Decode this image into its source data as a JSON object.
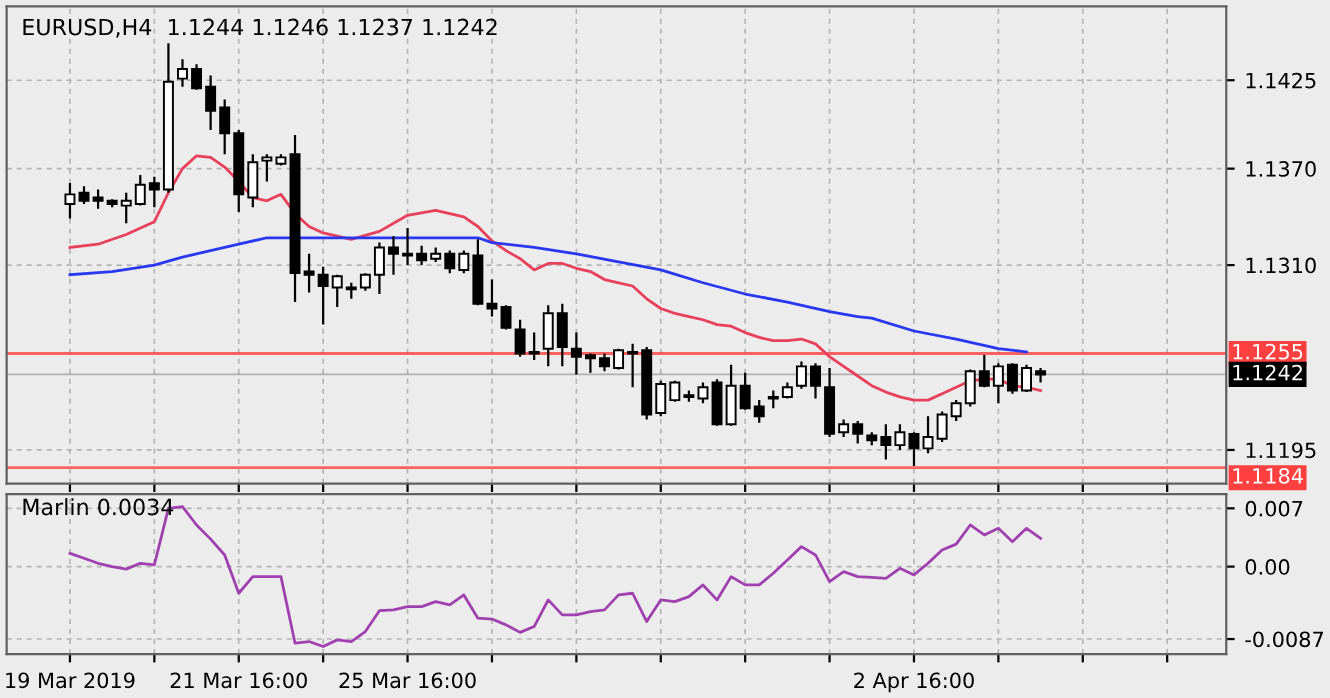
{
  "chart_data": [
    {
      "type": "candlestick",
      "title": "EURUSD,H4  1.1244 1.1246 1.1237 1.1242",
      "categories": [
        null,
        null,
        null,
        null,
        null,
        null,
        null,
        null,
        null,
        null,
        null,
        null,
        null,
        null,
        null,
        null,
        null,
        null,
        null,
        null,
        null,
        null,
        null,
        null,
        null,
        null,
        null,
        null,
        null,
        null,
        null,
        null,
        null,
        null,
        null,
        null,
        null,
        null,
        null,
        null,
        null,
        null,
        null,
        null,
        null,
        null,
        null,
        null,
        null,
        null,
        null,
        null,
        null,
        null,
        null,
        null,
        null,
        null,
        null,
        null,
        null,
        null,
        null,
        null,
        null,
        null,
        null,
        null,
        null,
        null
      ],
      "ohlc": [
        [
          1.1348,
          1.1361,
          1.1339,
          1.1354
        ],
        [
          1.1355,
          1.1359,
          1.1348,
          1.135
        ],
        [
          1.1352,
          1.1357,
          1.1345,
          1.135
        ],
        [
          1.135,
          1.1351,
          1.1346,
          1.1348
        ],
        [
          1.1347,
          1.1355,
          1.1336,
          1.135
        ],
        [
          1.1348,
          1.1366,
          1.1347,
          1.136
        ],
        [
          1.1361,
          1.1365,
          1.1346,
          1.1357
        ],
        [
          1.1357,
          1.1448,
          1.1355,
          1.1424
        ],
        [
          1.1426,
          1.1438,
          1.1421,
          1.1432
        ],
        [
          1.1432,
          1.1435,
          1.1419,
          1.142
        ],
        [
          1.1421,
          1.1428,
          1.1394,
          1.1406
        ],
        [
          1.1408,
          1.1413,
          1.1379,
          1.1392
        ],
        [
          1.1392,
          1.1394,
          1.1343,
          1.1354
        ],
        [
          1.1352,
          1.1379,
          1.1346,
          1.1374
        ],
        [
          1.1375,
          1.1379,
          1.1362,
          1.1377
        ],
        [
          1.1373,
          1.1379,
          1.1372,
          1.1377
        ],
        [
          1.1379,
          1.1391,
          1.1287,
          1.1305
        ],
        [
          1.1306,
          1.1317,
          1.1293,
          1.1304
        ],
        [
          1.1304,
          1.1309,
          1.1273,
          1.1297
        ],
        [
          1.1296,
          1.1304,
          1.1284,
          1.1303
        ],
        [
          1.1296,
          1.1299,
          1.1289,
          1.1295
        ],
        [
          1.1296,
          1.1305,
          1.1294,
          1.1304
        ],
        [
          1.1304,
          1.1324,
          1.1292,
          1.1321
        ],
        [
          1.1321,
          1.1328,
          1.1304,
          1.1317
        ],
        [
          1.1317,
          1.1333,
          1.131,
          1.1316
        ],
        [
          1.1317,
          1.1322,
          1.131,
          1.1313
        ],
        [
          1.1314,
          1.1321,
          1.1312,
          1.1317
        ],
        [
          1.1317,
          1.1319,
          1.1305,
          1.1308
        ],
        [
          1.1307,
          1.1319,
          1.1305,
          1.1317
        ],
        [
          1.1316,
          1.1326,
          1.1285,
          1.1286
        ],
        [
          1.1286,
          1.1301,
          1.1278,
          1.1283
        ],
        [
          1.1284,
          1.1285,
          1.127,
          1.1271
        ],
        [
          1.127,
          1.1276,
          1.1253,
          1.1255
        ],
        [
          1.1255,
          1.1268,
          1.1251,
          1.1256
        ],
        [
          1.1258,
          1.1285,
          1.1247,
          1.128
        ],
        [
          1.128,
          1.1286,
          1.1247,
          1.1259
        ],
        [
          1.1258,
          1.1268,
          1.1242,
          1.1253
        ],
        [
          1.1254,
          1.1255,
          1.1243,
          1.1252
        ],
        [
          1.1252,
          1.1255,
          1.1244,
          1.1247
        ],
        [
          1.1246,
          1.1258,
          1.1245,
          1.1257
        ],
        [
          1.1256,
          1.1261,
          1.1234,
          1.1255
        ],
        [
          1.1257,
          1.1259,
          1.1214,
          1.1217
        ],
        [
          1.1218,
          1.1238,
          1.1216,
          1.1236
        ],
        [
          1.1226,
          1.1238,
          1.1225,
          1.1237
        ],
        [
          1.1229,
          1.1232,
          1.1225,
          1.1228
        ],
        [
          1.1227,
          1.1237,
          1.1224,
          1.1234
        ],
        [
          1.1237,
          1.1239,
          1.121,
          1.1211
        ],
        [
          1.1211,
          1.1248,
          1.121,
          1.1235
        ],
        [
          1.1235,
          1.1243,
          1.122,
          1.1221
        ],
        [
          1.1222,
          1.1226,
          1.1212,
          1.1216
        ],
        [
          1.1228,
          1.1232,
          1.1221,
          1.1227
        ],
        [
          1.1228,
          1.1237,
          1.1227,
          1.1234
        ],
        [
          1.1235,
          1.125,
          1.1233,
          1.1247
        ],
        [
          1.1247,
          1.1249,
          1.1227,
          1.1235
        ],
        [
          1.1234,
          1.1246,
          1.1203,
          1.1205
        ],
        [
          1.1206,
          1.1214,
          1.1203,
          1.1211
        ],
        [
          1.1211,
          1.1213,
          1.1199,
          1.1205
        ],
        [
          1.1204,
          1.1206,
          1.1198,
          1.1201
        ],
        [
          1.1203,
          1.1211,
          1.1189,
          1.1198
        ],
        [
          1.1198,
          1.1211,
          1.1195,
          1.1206
        ],
        [
          1.1205,
          1.1206,
          1.1185,
          1.1196
        ],
        [
          1.1196,
          1.1216,
          1.1193,
          1.1203
        ],
        [
          1.1202,
          1.1219,
          1.12,
          1.1217
        ],
        [
          1.1216,
          1.1226,
          1.1213,
          1.1224
        ],
        [
          1.1224,
          1.1245,
          1.1222,
          1.1244
        ],
        [
          1.1244,
          1.1254,
          1.1234,
          1.1235
        ],
        [
          1.1235,
          1.1249,
          1.1224,
          1.1247
        ],
        [
          1.1248,
          1.1249,
          1.123,
          1.1232
        ],
        [
          1.1232,
          1.1248,
          1.1231,
          1.1246
        ],
        [
          1.1244,
          1.1246,
          1.1237,
          1.1242
        ]
      ],
      "series": [
        {
          "type": "line",
          "color": "#e8405a",
          "values": [
            1.1321,
            null,
            1.1323,
            null,
            1.1329,
            null,
            1.1337,
            1.1355,
            1.137,
            1.1378,
            1.1377,
            1.1371,
            1.1362,
            1.1352,
            1.135,
            1.1354,
            1.1342,
            1.1334,
            1.133,
            null,
            1.1326,
            null,
            1.1331,
            null,
            1.1341,
            null,
            1.1344,
            null,
            1.134,
            1.1334,
            1.1325,
            1.1319,
            1.1314,
            1.1307,
            1.1311,
            1.1311,
            1.1308,
            1.1306,
            1.1301,
            1.1299,
            1.1297,
            1.1289,
            1.1283,
            1.128,
            1.1278,
            1.1276,
            1.1273,
            1.1272,
            1.1268,
            1.1265,
            1.1263,
            1.1263,
            1.1264,
            1.1261,
            1.1253,
            1.1247,
            1.1241,
            1.1235,
            1.1231,
            1.1228,
            1.1226,
            1.1226,
            1.123,
            1.1234,
            1.1238,
            1.1239,
            1.1239,
            1.1235,
            1.1234,
            1.1232
          ]
        },
        {
          "type": "line",
          "color": "#2838f0",
          "values": [
            1.1304,
            null,
            null,
            1.1306,
            null,
            null,
            1.131,
            null,
            1.1315,
            null,
            1.1319,
            null,
            1.1323,
            null,
            1.1327,
            null,
            null,
            null,
            null,
            null,
            1.1327,
            null,
            null,
            null,
            null,
            1.1327,
            null,
            null,
            null,
            1.1327,
            1.1324,
            null,
            null,
            1.1321,
            null,
            null,
            1.1317,
            null,
            null,
            1.1312,
            null,
            null,
            1.1307,
            null,
            null,
            1.1299,
            null,
            null,
            1.1292,
            null,
            null,
            1.1287,
            null,
            null,
            1.1281,
            null,
            1.1278,
            1.1277,
            null,
            null,
            1.1269,
            null,
            null,
            1.1264,
            null,
            null,
            1.1258,
            null,
            1.1256,
            null
          ]
        }
      ],
      "ylim": [
        1.1174,
        1.1471
      ],
      "yticks": [
        1.1425,
        {
          "value": 1.137,
          "label": "1.1370"
        },
        {
          "value": 1.131,
          "label": "1.1310"
        },
        1.1195
      ],
      "ref_lines": [
        {
          "axis": "y",
          "value": 1.1255,
          "label": "1.1255",
          "color": "#ff4040"
        },
        {
          "axis": "y",
          "value": 1.1242,
          "label": "1.1242",
          "color": "#000000"
        },
        {
          "axis": "y",
          "value": 1.1184,
          "label": "1.1184",
          "color": "#ff4040"
        }
      ],
      "grid": true,
      "tick_labels": "y"
    },
    {
      "type": "line",
      "title": "Marlin 0.0034",
      "categories": [
        "19 Mar 2019",
        null,
        null,
        null,
        null,
        null,
        null,
        null,
        null,
        null,
        null,
        null,
        "21 Mar 16:00",
        null,
        null,
        null,
        null,
        null,
        null,
        null,
        null,
        null,
        null,
        null,
        "25 Mar 16:00",
        null,
        null,
        null,
        null,
        null,
        null,
        null,
        null,
        null,
        null,
        null,
        null,
        null,
        null,
        null,
        null,
        null,
        null,
        null,
        null,
        null,
        null,
        null,
        null,
        null,
        null,
        null,
        null,
        null,
        null,
        null,
        null,
        null,
        null,
        null,
        "2 Apr 16:00",
        null,
        null,
        null,
        null,
        null,
        null,
        null,
        null,
        null
      ],
      "series": [
        {
          "color": "#a040b0",
          "values": [
            0.0016,
            0.001,
            0.0004,
            0.0,
            -0.0003,
            0.0004,
            0.0002,
            0.007,
            0.0072,
            0.005,
            0.0033,
            0.0014,
            -0.0032,
            -0.0012,
            -0.0012,
            -0.0012,
            -0.0092,
            -0.009,
            -0.0096,
            -0.0088,
            -0.009,
            -0.0078,
            -0.0053,
            -0.0052,
            -0.0048,
            -0.0048,
            -0.0042,
            -0.0046,
            -0.0034,
            -0.0062,
            -0.0063,
            -0.007,
            -0.0079,
            -0.0072,
            -0.004,
            -0.0058,
            -0.0058,
            -0.0054,
            -0.0052,
            -0.0034,
            -0.0032,
            -0.0066,
            -0.004,
            -0.0042,
            -0.0036,
            -0.0022,
            -0.004,
            -0.0012,
            -0.0022,
            -0.0022,
            -0.0008,
            0.0008,
            0.0024,
            0.0014,
            -0.0018,
            -0.0006,
            -0.0012,
            -0.0013,
            -0.0014,
            -0.0002,
            -0.001,
            0.0004,
            0.002,
            0.0027,
            0.005,
            0.0038,
            0.0046,
            0.003,
            0.0046,
            0.0034
          ]
        }
      ],
      "ylim": [
        -0.0105,
        0.0087
      ],
      "yticks": [
        0.007,
        {
          "value": 0,
          "label": "0.00"
        },
        -0.0087
      ],
      "grid": true
    }
  ]
}
